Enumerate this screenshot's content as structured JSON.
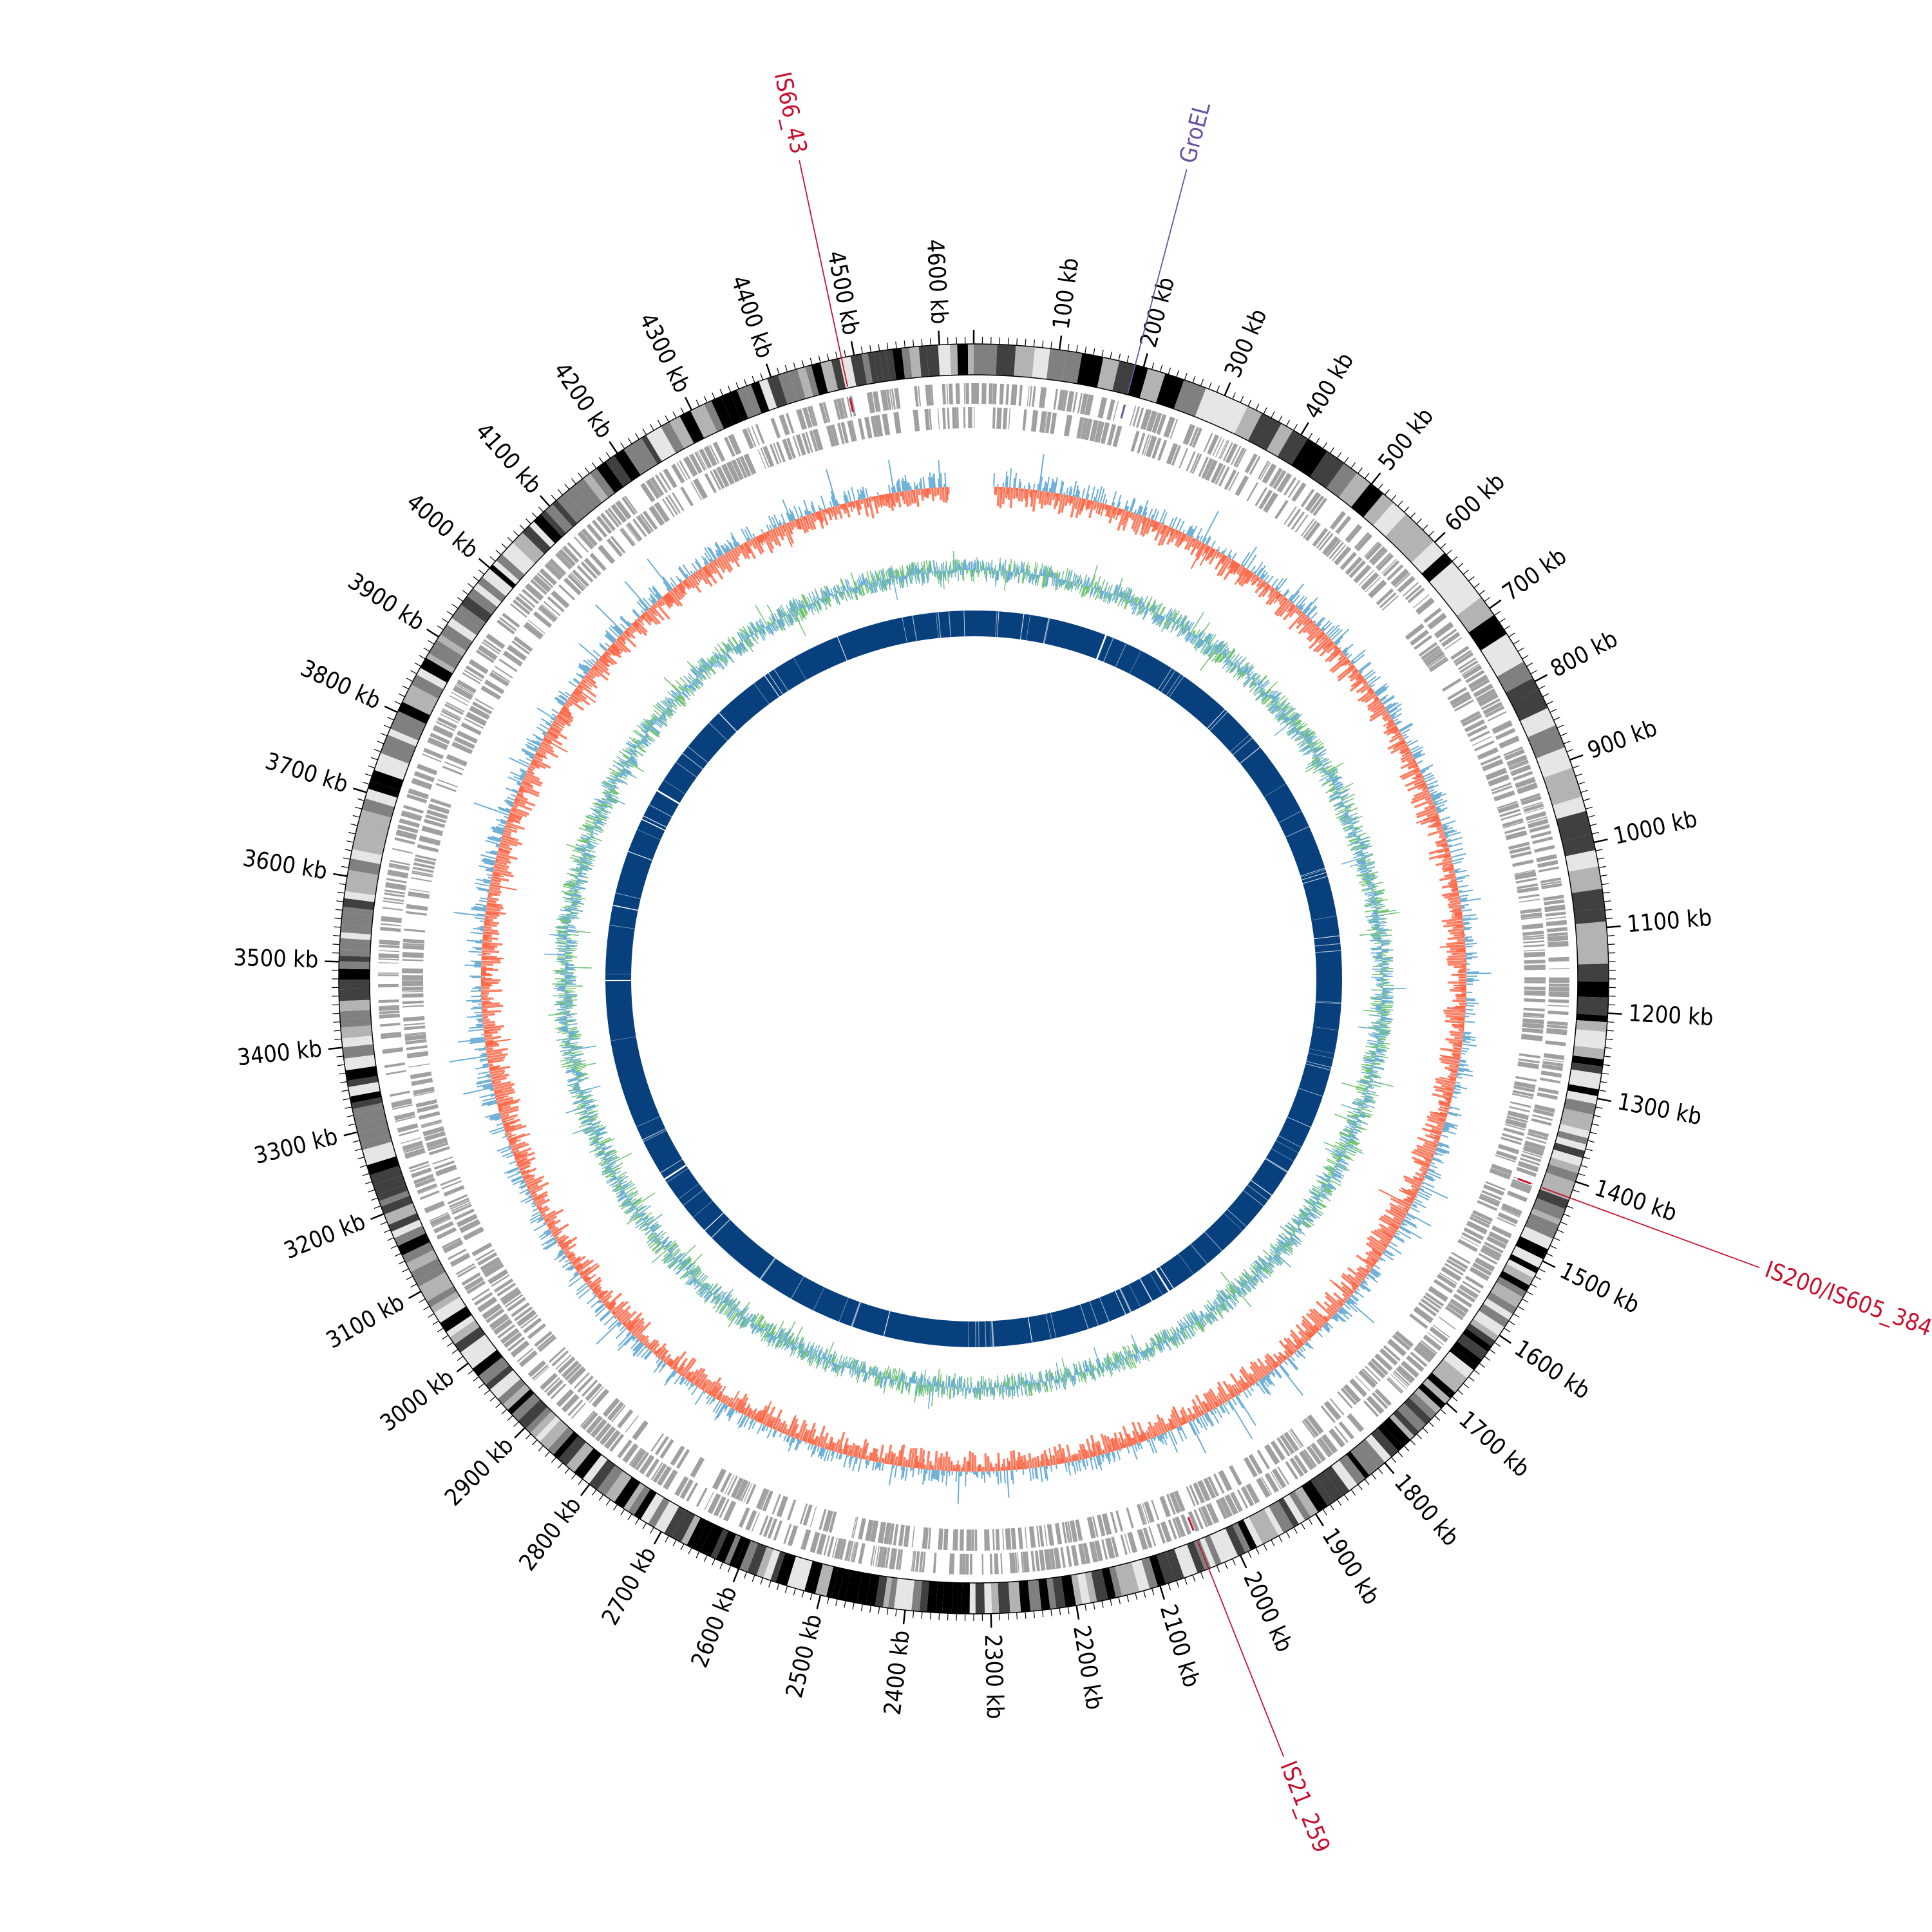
{
  "genome": {
    "length_kb": 4640,
    "tick_labels": [
      "100 kb",
      "200 kb",
      "300 kb",
      "400 kb",
      "500 kb",
      "600 kb",
      "700 kb",
      "800 kb",
      "900 kb",
      "1000 kb",
      "1100 kb",
      "1200 kb",
      "1300 kb",
      "1400 kb",
      "1500 kb",
      "1600 kb",
      "1700 kb",
      "1800 kb",
      "1900 kb",
      "2000 kb",
      "2100 kb",
      "2200 kb",
      "2300 kb",
      "2400 kb",
      "2500 kb",
      "2600 kb",
      "2700 kb",
      "2800 kb",
      "2900 kb",
      "3000 kb",
      "3100 kb",
      "3200 kb",
      "3300 kb",
      "3400 kb",
      "3500 kb",
      "3600 kb",
      "3700 kb",
      "3800 kb",
      "3900 kb",
      "4000 kb",
      "4100 kb",
      "4200 kb",
      "4300 kb",
      "4400 kb",
      "4500 kb",
      "4600 kb"
    ]
  },
  "annotations": [
    {
      "label": "GroEL",
      "position_kb": 190,
      "color": "#6a51a3"
    },
    {
      "label": "IS200/IS605_384",
      "position_kb": 1420,
      "color": "#c8102e"
    },
    {
      "label": "IS21_259",
      "position_kb": 2040,
      "color": "#c8102e"
    },
    {
      "label": "IS66_43",
      "position_kb": 4485,
      "color": "#c8102e"
    }
  ],
  "tracks": {
    "ideogram_colors": [
      "#000000",
      "#404040",
      "#808080",
      "#b3b3b3",
      "#e6e6e6"
    ],
    "feature_color": "#a0a0a0",
    "gc_skew_positive_color": "#6baed6",
    "gc_skew_negative_color": "#fb6a4a",
    "gc_content_color": "#74c476",
    "gc_content_secondary_color": "#6baed6",
    "inner_ring_color": "#08407e",
    "gap_start_kb": 4600,
    "gap_end_kb": 30
  }
}
